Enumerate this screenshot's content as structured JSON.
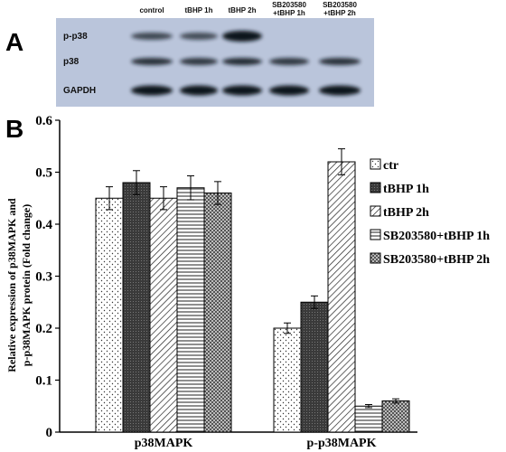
{
  "panel_a": {
    "letter": "A",
    "lanes": [
      "control",
      "tBHP 1h",
      "tBHP 2h",
      [
        "SB203580",
        "+tBHP 1h"
      ],
      [
        "SB203580",
        "+tBHP 2h"
      ]
    ],
    "rows": [
      "p-p38",
      "p38",
      "GAPDH"
    ],
    "colors": {
      "membrane": "#bac5db",
      "band": "#0f141c"
    }
  },
  "panel_b": {
    "letter": "B"
  },
  "chart_data": {
    "type": "bar",
    "ylabel": [
      "Relative expression of p38MAPK and",
      "p-p38MAPK protein (Fold change)"
    ],
    "xlabel": "",
    "categories": [
      "p38MAPK",
      "p-p38MAPK"
    ],
    "ylim": [
      0,
      0.6
    ],
    "yticks": [
      "0",
      "0.1",
      "0.2",
      "0.3",
      "0.4",
      "0.5",
      "0.6"
    ],
    "grid": false,
    "legend_position": "right",
    "series": [
      {
        "name": "ctr",
        "values": [
          0.45,
          0.2
        ],
        "errors": [
          0.022,
          0.01
        ],
        "pattern": "dots"
      },
      {
        "name": "tBHP 1h",
        "values": [
          0.48,
          0.25
        ],
        "errors": [
          0.023,
          0.012
        ],
        "pattern": "dark"
      },
      {
        "name": "tBHP 2h",
        "values": [
          0.45,
          0.52
        ],
        "errors": [
          0.022,
          0.025
        ],
        "pattern": "diag"
      },
      {
        "name": "SB203580+tBHP 1h",
        "values": [
          0.47,
          0.05
        ],
        "errors": [
          0.023,
          0.003
        ],
        "pattern": "hlines"
      },
      {
        "name": "SB203580+tBHP 2h",
        "values": [
          0.46,
          0.06
        ],
        "errors": [
          0.022,
          0.004
        ],
        "pattern": "cross"
      }
    ]
  }
}
